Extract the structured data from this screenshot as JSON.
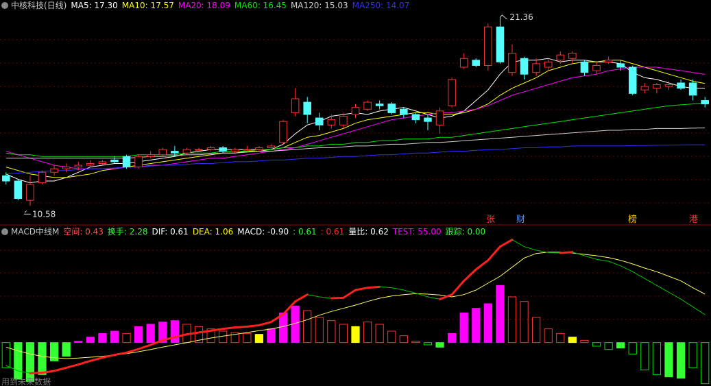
{
  "chart_data": [
    {
      "type": "candlestick",
      "title": "中核科技(日线)",
      "up_color": "#ff3232",
      "down_color": "#54fcfc",
      "ylim": [
        10.2,
        21.75
      ],
      "open": [
        12.3,
        12.0,
        10.9,
        11.9,
        12.5,
        12.7,
        12.8,
        12.9,
        13.0,
        13.2,
        13.4,
        12.8,
        13.4,
        13.5,
        13.7,
        13.6,
        13.8,
        13.8,
        13.9,
        13.7,
        13.8,
        13.8,
        13.9,
        14.2,
        15.9,
        16.5,
        15.6,
        15.2,
        15.2,
        15.8,
        16.1,
        16.4,
        16.4,
        16.1,
        15.8,
        15.6,
        15.2,
        16.3,
        18.5,
        18.9,
        18.6,
        20.8,
        18.2,
        19.0,
        18.2,
        18.5,
        18.9,
        19.0,
        18.8,
        18.3,
        18.8,
        18.7,
        18.5,
        17.2,
        17.3,
        17.4,
        17.6,
        17.6,
        16.6
      ],
      "high": [
        12.5,
        12.1,
        12.3,
        12.6,
        12.9,
        13.0,
        13.1,
        13.2,
        13.2,
        13.4,
        13.5,
        13.5,
        13.7,
        13.9,
        14.0,
        13.9,
        13.9,
        14.0,
        14.0,
        13.9,
        14.0,
        14.0,
        14.1,
        15.5,
        17.3,
        16.8,
        15.9,
        15.8,
        15.9,
        16.4,
        16.6,
        16.6,
        16.5,
        16.2,
        15.9,
        15.8,
        16.2,
        17.9,
        19.3,
        19.0,
        21.0,
        21.36,
        19.8,
        19.1,
        19.0,
        19.0,
        19.4,
        19.4,
        18.9,
        18.8,
        19.1,
        18.9,
        18.6,
        17.6,
        17.6,
        17.7,
        17.8,
        17.8,
        16.8
      ],
      "low": [
        11.8,
        10.9,
        10.58,
        11.8,
        12.3,
        12.5,
        12.6,
        12.8,
        12.9,
        13.0,
        12.7,
        12.7,
        13.3,
        13.4,
        13.4,
        13.5,
        13.7,
        13.7,
        13.6,
        13.6,
        13.7,
        13.7,
        13.8,
        14.1,
        15.7,
        15.3,
        14.9,
        15.0,
        15.0,
        15.6,
        16.0,
        16.1,
        15.8,
        15.6,
        15.3,
        14.9,
        14.7,
        16.2,
        18.4,
        18.5,
        18.3,
        18.7,
        18.0,
        17.8,
        18.0,
        18.3,
        18.7,
        18.7,
        18.0,
        18.1,
        18.7,
        18.3,
        16.9,
        17.0,
        17.0,
        17.2,
        17.2,
        16.6,
        16.2
      ],
      "close": [
        12.0,
        11.0,
        11.8,
        12.5,
        12.7,
        12.8,
        12.9,
        13.0,
        13.1,
        13.1,
        12.8,
        13.4,
        13.5,
        13.8,
        13.6,
        13.8,
        13.8,
        13.9,
        13.7,
        13.8,
        13.8,
        13.9,
        14.0,
        15.4,
        16.7,
        15.8,
        15.2,
        15.5,
        15.7,
        16.2,
        16.5,
        16.3,
        15.9,
        15.8,
        15.5,
        15.4,
        16.0,
        17.8,
        19.0,
        18.6,
        20.8,
        18.8,
        19.3,
        18.1,
        18.7,
        18.8,
        19.2,
        19.3,
        18.2,
        18.6,
        18.9,
        18.5,
        17.0,
        17.4,
        17.5,
        17.5,
        17.3,
        16.9,
        16.4
      ],
      "series": [
        {
          "legend": "MA5: 17.30",
          "color": "#ffffff",
          "values": [
            12.4,
            12.1,
            11.9,
            12.0,
            12.0,
            12.2,
            12.5,
            12.8,
            12.9,
            13.0,
            13.0,
            13.1,
            13.2,
            13.3,
            13.4,
            13.6,
            13.7,
            13.8,
            13.8,
            13.8,
            13.8,
            13.8,
            13.8,
            14.1,
            14.7,
            15.2,
            15.4,
            15.7,
            15.8,
            15.9,
            15.8,
            16.0,
            16.1,
            16.2,
            16.0,
            15.8,
            15.6,
            15.7,
            16.0,
            16.6,
            17.2,
            18.1,
            18.8,
            18.9,
            18.9,
            19.0,
            18.8,
            18.9,
            18.9,
            18.8,
            18.8,
            18.7,
            18.2,
            17.9,
            17.8,
            17.6,
            17.4,
            17.3,
            17.3
          ]
        },
        {
          "legend": "MA10: 17.57",
          "color": "#ffff00",
          "values": [
            12.8,
            12.6,
            12.4,
            12.3,
            12.2,
            12.2,
            12.3,
            12.4,
            12.6,
            12.7,
            12.8,
            12.9,
            13.0,
            13.1,
            13.2,
            13.3,
            13.4,
            13.5,
            13.6,
            13.6,
            13.7,
            13.7,
            13.8,
            13.9,
            14.2,
            14.5,
            14.6,
            14.8,
            15.0,
            15.3,
            15.5,
            15.6,
            15.7,
            15.8,
            15.9,
            15.9,
            15.8,
            15.8,
            15.9,
            16.1,
            16.4,
            16.9,
            17.3,
            17.6,
            17.9,
            18.3,
            18.5,
            18.7,
            18.8,
            18.8,
            18.9,
            18.9,
            18.7,
            18.5,
            18.3,
            18.1,
            17.9,
            17.7,
            17.57
          ]
        },
        {
          "legend": "MA20: 18.09",
          "color": "#ff00ff",
          "values": [
            13.7,
            13.5,
            13.3,
            13.1,
            12.9,
            12.8,
            12.7,
            12.7,
            12.7,
            12.7,
            12.8,
            12.8,
            12.9,
            12.9,
            13.0,
            13.1,
            13.2,
            13.3,
            13.3,
            13.4,
            13.5,
            13.6,
            13.7,
            13.8,
            13.9,
            14.1,
            14.3,
            14.5,
            14.7,
            14.9,
            15.1,
            15.3,
            15.5,
            15.6,
            15.7,
            15.8,
            15.9,
            15.9,
            16.0,
            16.1,
            16.3,
            16.6,
            16.9,
            17.1,
            17.3,
            17.5,
            17.7,
            17.9,
            18.0,
            18.1,
            18.3,
            18.4,
            18.5,
            18.5,
            18.5,
            18.4,
            18.3,
            18.2,
            18.09
          ]
        },
        {
          "legend": "MA60: 16.45",
          "color": "#00e600",
          "values": [
            13.6,
            13.5,
            13.5,
            13.4,
            13.4,
            13.4,
            13.4,
            13.4,
            13.4,
            13.4,
            13.4,
            13.5,
            13.5,
            13.5,
            13.5,
            13.6,
            13.6,
            13.6,
            13.7,
            13.7,
            13.7,
            13.8,
            13.8,
            13.9,
            13.9,
            14.0,
            14.0,
            14.1,
            14.1,
            14.2,
            14.2,
            14.3,
            14.3,
            14.4,
            14.4,
            14.4,
            14.5,
            14.5,
            14.6,
            14.7,
            14.8,
            14.9,
            15.0,
            15.1,
            15.2,
            15.3,
            15.4,
            15.5,
            15.6,
            15.7,
            15.8,
            15.9,
            16.0,
            16.1,
            16.2,
            16.3,
            16.35,
            16.4,
            16.45
          ]
        },
        {
          "legend": "MA120: 15.03",
          "color": "#d0d0d0",
          "values": [
            13.3,
            13.3,
            13.3,
            13.3,
            13.3,
            13.3,
            13.3,
            13.3,
            13.3,
            13.3,
            13.3,
            13.35,
            13.4,
            13.4,
            13.45,
            13.5,
            13.5,
            13.55,
            13.6,
            13.6,
            13.65,
            13.7,
            13.7,
            13.75,
            13.8,
            13.85,
            13.9,
            13.9,
            13.95,
            14.0,
            14.0,
            14.05,
            14.1,
            14.1,
            14.15,
            14.2,
            14.2,
            14.25,
            14.3,
            14.35,
            14.4,
            14.45,
            14.5,
            14.55,
            14.6,
            14.65,
            14.7,
            14.75,
            14.8,
            14.85,
            14.9,
            14.9,
            14.95,
            14.95,
            15.0,
            15.0,
            15.0,
            15.02,
            15.03
          ]
        },
        {
          "legend": "MA250: 14.07",
          "color": "#3030ff",
          "values": [
            12.4,
            12.45,
            12.5,
            12.55,
            12.6,
            12.6,
            12.65,
            12.7,
            12.7,
            12.75,
            12.8,
            12.8,
            12.85,
            12.9,
            12.9,
            12.95,
            13.0,
            13.0,
            13.05,
            13.1,
            13.1,
            13.15,
            13.2,
            13.2,
            13.25,
            13.3,
            13.3,
            13.35,
            13.4,
            13.4,
            13.45,
            13.5,
            13.5,
            13.55,
            13.6,
            13.6,
            13.65,
            13.7,
            13.7,
            13.75,
            13.8,
            13.8,
            13.85,
            13.9,
            13.9,
            13.95,
            13.95,
            14.0,
            14.0,
            14.0,
            14.0,
            14.0,
            14.02,
            14.03,
            14.04,
            14.05,
            14.06,
            14.07,
            14.07
          ]
        }
      ],
      "high_label": "21.36",
      "low_label": "10.58",
      "markers": [
        {
          "text": "张",
          "color": "#ff3030"
        },
        {
          "text": "财",
          "color": "#5a8cff"
        },
        {
          "text": "榜",
          "color": "#ffcc00"
        },
        {
          "text": "港",
          "color": "#ff3030"
        }
      ]
    },
    {
      "type": "macd",
      "title": "MACD中线M",
      "items": [
        {
          "text": "空间: 0.43",
          "color": "#ff5050"
        },
        {
          "text": "换手: 2.28",
          "color": "#33ff33"
        },
        {
          "text": "DIF: 0.61",
          "color": "#ffffff"
        },
        {
          "text": "DEA: 1.06",
          "color": "#ffff00"
        },
        {
          "text": "MACD: -0.90",
          "color": "#ffffff"
        },
        {
          "text": ": 0.61",
          "color": "#33ff33"
        },
        {
          "text": ": 0.61",
          "color": "#ff3232"
        },
        {
          "text": "量比: 0.62",
          "color": "#ffffff"
        },
        {
          "text": "TEST: 55.00",
          "color": "#ff00ff"
        },
        {
          "text": "跟踪: 0.00",
          "color": "#33ff33"
        }
      ],
      "ylim": [
        -0.95,
        2.47
      ],
      "histogram": [
        -0.55,
        -0.8,
        -0.85,
        -0.7,
        -0.4,
        -0.3,
        0.03,
        0.12,
        0.2,
        0.25,
        0.2,
        0.35,
        0.4,
        0.45,
        0.48,
        0.4,
        0.35,
        0.3,
        0.25,
        0.22,
        0.2,
        0.18,
        0.3,
        0.65,
        0.8,
        0.7,
        0.55,
        0.48,
        0.4,
        0.35,
        0.45,
        0.4,
        0.25,
        0.15,
        0.03,
        -0.05,
        -0.1,
        0.2,
        0.65,
        0.75,
        0.85,
        1.25,
        1.0,
        0.9,
        0.55,
        0.3,
        0.2,
        0.12,
        0.05,
        -0.08,
        -0.15,
        -0.12,
        -0.25,
        -0.6,
        -0.7,
        -0.75,
        -0.78,
        -0.55,
        -0.9
      ],
      "bar_colors": [
        "#00e000",
        "#33ff33",
        "#33ff33",
        "#33ff33",
        "#33ff33",
        "#33ff33",
        "#ff00ff",
        "#ff00ff",
        "#ff00ff",
        "#ff00ff",
        "#ff3232",
        "#ff00ff",
        "#ff00ff",
        "#ff00ff",
        "#ff00ff",
        "#ff3232",
        "#ff3232",
        "#ff3232",
        "#ff3232",
        "#ff3232",
        "#ff3232",
        "#ffff00",
        "#ff00ff",
        "#ff00ff",
        "#ff00ff",
        "#ff3232",
        "#ff3232",
        "#ff3232",
        "#ff3232",
        "#ffff00",
        "#ff3232",
        "#ff3232",
        "#ff3232",
        "#ff3232",
        "#ff3232",
        "#00e000",
        "#33ff33",
        "#ff00ff",
        "#ff00ff",
        "#ff00ff",
        "#ff00ff",
        "#ff00ff",
        "#ff3232",
        "#ff3232",
        "#ff3232",
        "#ff3232",
        "#ff3232",
        "#ffff00",
        "#ff3232",
        "#00e000",
        "#00e000",
        "#33ff33",
        "#00e000",
        "#00e000",
        "#00e000",
        "#33ff33",
        "#33ff33",
        "#00e000",
        "#00e000"
      ],
      "bar_filled": [
        false,
        true,
        true,
        true,
        true,
        true,
        true,
        true,
        true,
        true,
        false,
        true,
        true,
        true,
        true,
        false,
        false,
        false,
        false,
        false,
        false,
        true,
        true,
        true,
        true,
        false,
        false,
        false,
        false,
        true,
        false,
        false,
        false,
        false,
        false,
        false,
        true,
        true,
        true,
        true,
        true,
        true,
        false,
        false,
        false,
        false,
        false,
        true,
        false,
        false,
        false,
        true,
        false,
        false,
        false,
        true,
        true,
        false,
        false
      ],
      "dif": [
        -0.5,
        -0.62,
        -0.67,
        -0.66,
        -0.62,
        -0.55,
        -0.48,
        -0.4,
        -0.33,
        -0.27,
        -0.22,
        -0.14,
        -0.05,
        0.05,
        0.12,
        0.18,
        0.22,
        0.26,
        0.3,
        0.33,
        0.35,
        0.38,
        0.45,
        0.62,
        0.9,
        1.05,
        1.0,
        0.97,
        0.98,
        1.15,
        1.2,
        1.22,
        1.2,
        1.15,
        1.08,
        1.0,
        0.95,
        1.05,
        1.35,
        1.6,
        1.8,
        2.1,
        2.25,
        2.1,
        2.02,
        1.97,
        1.96,
        1.98,
        1.9,
        1.82,
        1.78,
        1.68,
        1.55,
        1.4,
        1.25,
        1.1,
        0.95,
        0.78,
        0.61
      ],
      "dif_up_color": "#ff2020",
      "dif_down_color": "#00c000",
      "dea": [
        -0.1,
        -0.18,
        -0.25,
        -0.3,
        -0.33,
        -0.35,
        -0.34,
        -0.32,
        -0.3,
        -0.27,
        -0.24,
        -0.2,
        -0.15,
        -0.1,
        -0.05,
        0.0,
        0.05,
        0.1,
        0.14,
        0.18,
        0.22,
        0.26,
        0.3,
        0.35,
        0.42,
        0.5,
        0.6,
        0.68,
        0.75,
        0.82,
        0.9,
        0.97,
        1.02,
        1.05,
        1.07,
        1.06,
        1.04,
        1.0,
        1.05,
        1.15,
        1.3,
        1.45,
        1.65,
        1.85,
        1.95,
        1.98,
        1.98,
        1.96,
        1.93,
        1.9,
        1.86,
        1.8,
        1.72,
        1.63,
        1.55,
        1.45,
        1.35,
        1.2,
        1.06
      ],
      "dea_color": "#ffff60",
      "footnote": "用到未来数据"
    }
  ]
}
